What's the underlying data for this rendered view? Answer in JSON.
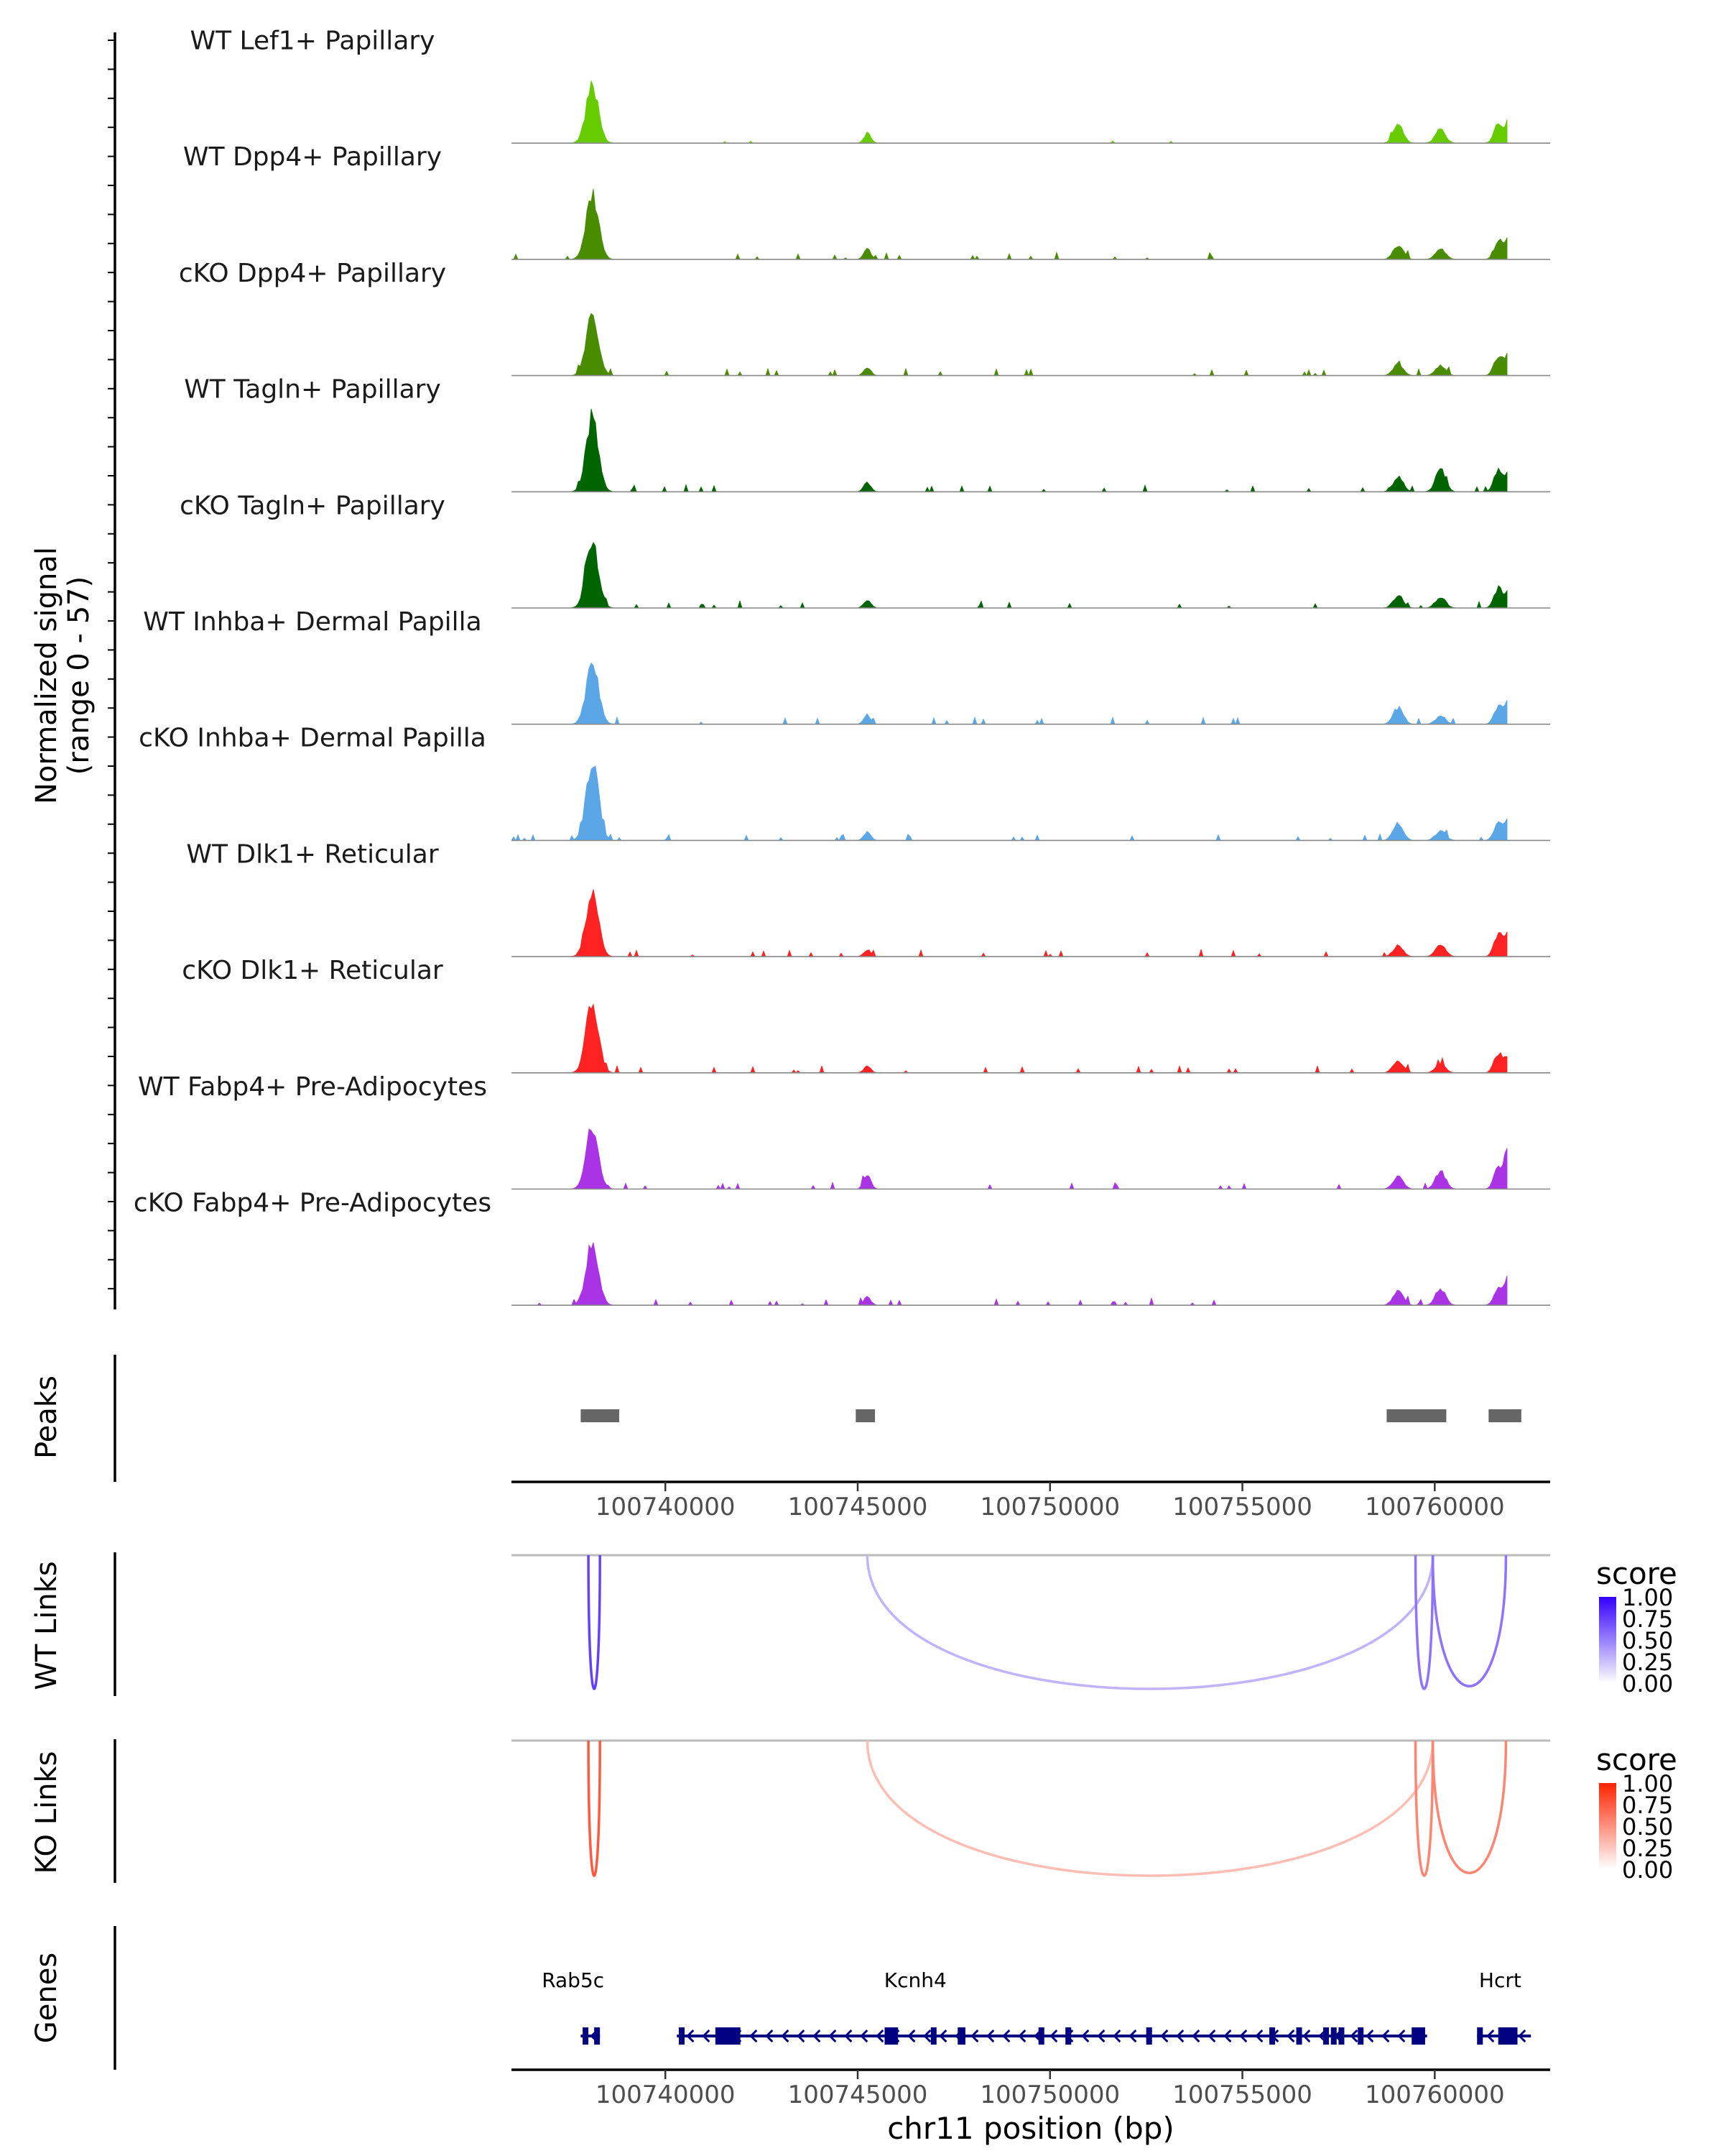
{
  "chart_data": [
    {
      "type": "area",
      "title": "",
      "ylabel_line1": "Normalized signal",
      "ylabel_line2": "(range 0 - 57)",
      "ylim": [
        0,
        57
      ],
      "xlim": [
        100736000,
        100763000
      ],
      "peak_centers_bp": [
        100738100,
        100745250,
        100759050,
        100760150,
        100761650,
        100761950
      ],
      "tracks": [
        {
          "name": "WT Lef1+ Papillary",
          "color": "#66cc00",
          "peak_heights": [
            42,
            7,
            13,
            10,
            14,
            17
          ],
          "background_density": 0.25
        },
        {
          "name": "WT Dpp4+ Papillary",
          "color": "#4a8c00",
          "peak_heights": [
            46,
            8,
            10,
            8,
            13,
            19
          ],
          "background_density": 0.6
        },
        {
          "name": "cKO Dpp4+ Papillary",
          "color": "#4a8c00",
          "peak_heights": [
            45,
            6,
            8,
            7,
            14,
            18
          ],
          "background_density": 0.6
        },
        {
          "name": "WT Tagln+ Papillary",
          "color": "#006400",
          "peak_heights": [
            55,
            7,
            11,
            16,
            15,
            17
          ],
          "background_density": 1.0
        },
        {
          "name": "cKO Tagln+ Papillary",
          "color": "#006400",
          "peak_heights": [
            49,
            6,
            9,
            8,
            14,
            13
          ],
          "background_density": 1.0
        },
        {
          "name": "WT Inhba+ Dermal Papilla",
          "color": "#5aa6e6",
          "peak_heights": [
            44,
            7,
            12,
            6,
            13,
            19
          ],
          "background_density": 0.6
        },
        {
          "name": "cKO Inhba+ Dermal Papilla",
          "color": "#5aa6e6",
          "peak_heights": [
            57,
            6,
            12,
            7,
            13,
            18
          ],
          "background_density": 0.8
        },
        {
          "name": "WT Dlk1+ Reticular",
          "color": "#ff2222",
          "peak_heights": [
            45,
            5,
            8,
            9,
            16,
            20
          ],
          "background_density": 0.6
        },
        {
          "name": "cKO Dlk1+ Reticular",
          "color": "#ff2222",
          "peak_heights": [
            52,
            5,
            9,
            6,
            14,
            13
          ],
          "background_density": 0.8
        },
        {
          "name": "WT Fabp4+ Pre-Adipocytes",
          "color": "#aa33e6",
          "peak_heights": [
            45,
            11,
            9,
            13,
            15,
            33
          ],
          "background_density": 0.7
        },
        {
          "name": "cKO Fabp4+ Pre-Adipocytes",
          "color": "#aa33e6",
          "peak_heights": [
            42,
            6,
            11,
            12,
            13,
            22
          ],
          "background_density": 0.9
        }
      ]
    },
    {
      "type": "peaks",
      "ylabel": "Peaks",
      "regions_bp": [
        [
          100737800,
          100738800
        ],
        [
          100744950,
          100745450
        ],
        [
          100758750,
          100760300
        ],
        [
          100761400,
          100762250
        ]
      ],
      "color": "#666666",
      "x_ticks": [
        100740000,
        100745000,
        100750000,
        100755000,
        100760000
      ]
    },
    {
      "type": "links",
      "ylabel": "WT Links",
      "legend_title": "score",
      "legend_ticks": [
        "1.00",
        "0.75",
        "0.50",
        "0.25",
        "0.00"
      ],
      "color_high": "#3300ff",
      "links": [
        {
          "start": 100738000,
          "end": 100738300,
          "score": 0.75,
          "depth": 1.0
        },
        {
          "start": 100745250,
          "end": 100759950,
          "score": 0.3,
          "depth": 1.0
        },
        {
          "start": 100759500,
          "end": 100759950,
          "score": 0.55,
          "depth": 1.0
        },
        {
          "start": 100759950,
          "end": 100761850,
          "score": 0.55,
          "depth": 0.98
        }
      ]
    },
    {
      "type": "links",
      "ylabel": "KO Links",
      "legend_title": "score",
      "legend_ticks": [
        "1.00",
        "0.75",
        "0.50",
        "0.25",
        "0.00"
      ],
      "color_high": "#ff2200",
      "links": [
        {
          "start": 100738000,
          "end": 100738300,
          "score": 0.75,
          "depth": 1.0
        },
        {
          "start": 100745250,
          "end": 100759950,
          "score": 0.3,
          "depth": 1.0
        },
        {
          "start": 100759500,
          "end": 100759950,
          "score": 0.55,
          "depth": 1.0
        },
        {
          "start": 100759950,
          "end": 100761850,
          "score": 0.55,
          "depth": 0.98
        }
      ]
    },
    {
      "type": "genes",
      "ylabel": "Genes",
      "xlabel": "chr11 position (bp)",
      "x_ticks": [
        100740000,
        100745000,
        100750000,
        100755000,
        100760000
      ],
      "color": "#000080",
      "genes": [
        {
          "name": "Rab5c",
          "label_pos": 100737600,
          "start": 100737800,
          "end": 100738300,
          "exons": [
            [
              100737850,
              100737950
            ],
            [
              100738150,
              100738250
            ]
          ]
        },
        {
          "name": "Kcnh4",
          "label_pos": 100746500,
          "start": 100740300,
          "end": 100759800,
          "exons": [
            [
              100740350,
              100740500
            ],
            [
              100741300,
              100741950
            ],
            [
              100745700,
              100746050
            ],
            [
              100746900,
              100747050
            ],
            [
              100747600,
              100747800
            ],
            [
              100749700,
              100749850
            ],
            [
              100750400,
              100750500
            ],
            [
              100752500,
              100752650
            ],
            [
              100755700,
              100755850
            ],
            [
              100756400,
              100756500
            ],
            [
              100757100,
              100757200
            ],
            [
              100757300,
              100757350
            ],
            [
              100757500,
              100757600
            ],
            [
              100758000,
              100758100
            ],
            [
              100759400,
              100759750
            ]
          ]
        },
        {
          "name": "Hcrt",
          "label_pos": 100761700,
          "start": 100761100,
          "end": 100762500,
          "exons": [
            [
              100761100,
              100761250
            ],
            [
              100761650,
              100762150
            ]
          ]
        }
      ]
    }
  ]
}
